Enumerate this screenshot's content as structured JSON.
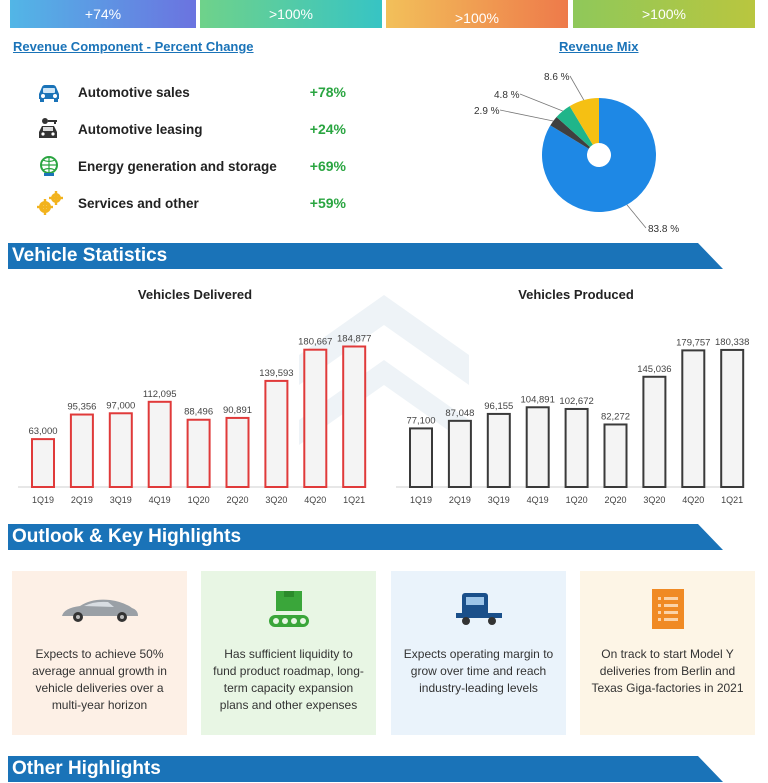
{
  "kpis": [
    "+74%",
    ">100%",
    ">100%",
    ">100%"
  ],
  "revenue_component": {
    "title": "Revenue Component - Percent Change",
    "items": [
      {
        "label": "Automotive sales",
        "value": "+78%",
        "icon": "car-icon"
      },
      {
        "label": "Automotive leasing",
        "value": "+24%",
        "icon": "car-key-icon"
      },
      {
        "label": "Energy generation and storage",
        "value": "+69%",
        "icon": "globe-energy-icon"
      },
      {
        "label": "Services and other",
        "value": "+59%",
        "icon": "gears-icon"
      }
    ]
  },
  "revenue_mix_title": "Revenue Mix",
  "sections": {
    "vehicle_statistics": "Vehicle Statistics",
    "outlook": "Outlook & Key Highlights",
    "other": "Other Highlights"
  },
  "chart_data": [
    {
      "type": "pie",
      "title": "Revenue Mix",
      "labels": [
        "83.8 %",
        "2.9 %",
        "4.8 %",
        "8.6 %"
      ],
      "values": [
        83.8,
        2.9,
        4.8,
        8.6
      ],
      "colors": [
        "#1e88e5",
        "#3f3f3f",
        "#20b58a",
        "#f5c013"
      ]
    },
    {
      "type": "bar",
      "title": "Vehicles Delivered",
      "categories": [
        "1Q19",
        "2Q19",
        "3Q19",
        "4Q19",
        "1Q20",
        "2Q20",
        "3Q20",
        "4Q20",
        "1Q21"
      ],
      "values": [
        63000,
        95356,
        97000,
        112095,
        88496,
        90891,
        139593,
        180667,
        184877
      ],
      "labels": [
        "63,000",
        "95,356",
        "97,000",
        "112,095",
        "88,496",
        "90,891",
        "139,593",
        "180,667",
        "184,877"
      ],
      "color": "#e03a3a"
    },
    {
      "type": "bar",
      "title": "Vehicles Produced",
      "categories": [
        "1Q19",
        "2Q19",
        "3Q19",
        "4Q19",
        "1Q20",
        "2Q20",
        "3Q20",
        "4Q20",
        "1Q21"
      ],
      "values": [
        77100,
        87048,
        96155,
        104891,
        102672,
        82272,
        145036,
        179757,
        180338
      ],
      "labels": [
        "77,100",
        "87,048",
        "96,155",
        "104,891",
        "102,672",
        "82,272",
        "145,036",
        "179,757",
        "180,338"
      ],
      "color": "#3a3a3a"
    }
  ],
  "cards": [
    {
      "text": "Expects to achieve 50% average annual growth in vehicle deliveries over a multi-year horizon",
      "icon": "car-icon"
    },
    {
      "text": "Has sufficient liquidity to fund product roadmap, long-term capacity expansion plans and other expenses",
      "icon": "conveyor-icon"
    },
    {
      "text": "Expects operating margin to grow over time and reach industry-leading levels",
      "icon": "truck-icon"
    },
    {
      "text": "On track to start Model Y deliveries from Berlin and Texas Giga-factories in 2021",
      "icon": "document-icon"
    }
  ]
}
